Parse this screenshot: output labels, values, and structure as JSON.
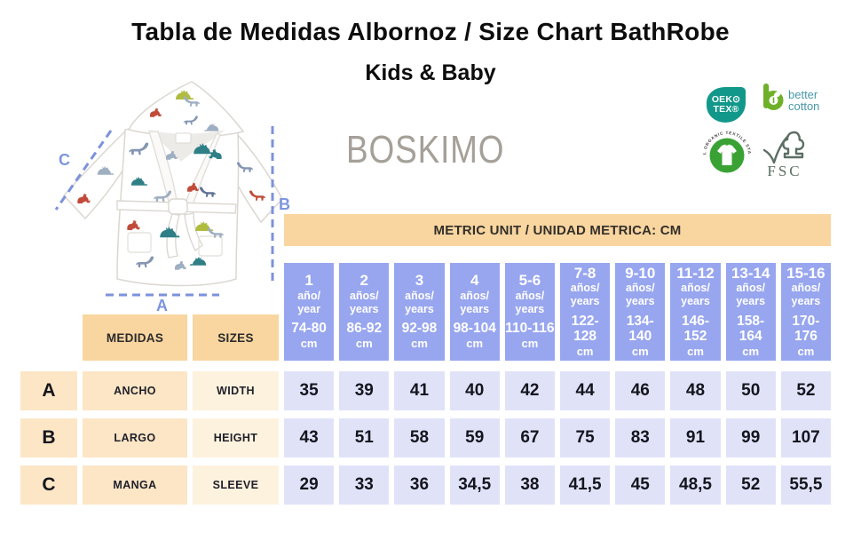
{
  "page": {
    "title": "Tabla de Medidas Albornoz / Size Chart BathRobe",
    "subtitle": "Kids & Baby",
    "brand": "BOSKIMO"
  },
  "diagram": {
    "label_a": "A",
    "label_b": "B",
    "label_c": "C"
  },
  "badges": {
    "oeko": {
      "line1": "OEK⊙",
      "line2": "TEX®"
    },
    "better_cotton": {
      "line1": "better",
      "line2": "cotton"
    },
    "gots": {
      "ring_top": "GLOBAL ORGANIC TEXTILE STANDARD",
      "ring_bottom": "GOTS"
    },
    "fsc": {
      "label": "FSC"
    }
  },
  "table": {
    "banner": "METRIC UNIT / UNIDAD METRICA: CM",
    "col_medidas": "MEDIDAS",
    "col_sizes": "SIZES",
    "size_columns": [
      {
        "age": "1",
        "es": "año/",
        "en": "year",
        "range": "74-80",
        "unit": "cm"
      },
      {
        "age": "2",
        "es": "años/",
        "en": "years",
        "range": "86-92",
        "unit": "cm"
      },
      {
        "age": "3",
        "es": "años/",
        "en": "years",
        "range": "92-98",
        "unit": "cm"
      },
      {
        "age": "4",
        "es": "años/",
        "en": "years",
        "range": "98-104",
        "unit": "cm"
      },
      {
        "age": "5-6",
        "es": "años/",
        "en": "years",
        "range": "110-116",
        "unit": "cm"
      },
      {
        "age": "7-8",
        "es": "años/",
        "en": "years",
        "range": "122-128",
        "unit": "cm"
      },
      {
        "age": "9-10",
        "es": "años/",
        "en": "years",
        "range": "134-140",
        "unit": "cm"
      },
      {
        "age": "11-12",
        "es": "años/",
        "en": "years",
        "range": "146-152",
        "unit": "cm"
      },
      {
        "age": "13-14",
        "es": "años/",
        "en": "years",
        "range": "158-164",
        "unit": "cm"
      },
      {
        "age": "15-16",
        "es": "años/",
        "en": "years",
        "range": "170-176",
        "unit": "cm"
      }
    ],
    "rows": [
      {
        "letter": "A",
        "es": "ANCHO",
        "en": "WIDTH",
        "values": [
          "35",
          "39",
          "41",
          "40",
          "42",
          "44",
          "46",
          "48",
          "50",
          "52"
        ]
      },
      {
        "letter": "B",
        "es": "LARGO",
        "en": "HEIGHT",
        "values": [
          "43",
          "51",
          "58",
          "59",
          "67",
          "75",
          "83",
          "91",
          "99",
          "107"
        ]
      },
      {
        "letter": "C",
        "es": "MANGA",
        "en": "SLEEVE",
        "values": [
          "29",
          "33",
          "36",
          "34,5",
          "38",
          "41,5",
          "45",
          "48,5",
          "52",
          "55,5"
        ]
      }
    ]
  },
  "chart_data": {
    "type": "table",
    "title": "Tabla de Medidas Albornoz / Size Chart BathRobe — Kids & Baby",
    "unit": "cm",
    "columns": [
      "1 año/year 74-80 cm",
      "2 años/years 86-92 cm",
      "3 años/years 92-98 cm",
      "4 años/years 98-104 cm",
      "5-6 años/years 110-116 cm",
      "7-8 años/years 122-128 cm",
      "9-10 años/years 134-140 cm",
      "11-12 años/years 146-152 cm",
      "13-14 años/years 158-164 cm",
      "15-16 años/years 170-176 cm"
    ],
    "rows": [
      {
        "label": "A ANCHO / WIDTH",
        "values": [
          35,
          39,
          41,
          40,
          42,
          44,
          46,
          48,
          50,
          52
        ]
      },
      {
        "label": "B LARGO / HEIGHT",
        "values": [
          43,
          51,
          58,
          59,
          67,
          75,
          83,
          91,
          99,
          107
        ]
      },
      {
        "label": "C MANGA / SLEEVE",
        "values": [
          29,
          33,
          36,
          34.5,
          38,
          41.5,
          45,
          48.5,
          52,
          55.5
        ]
      }
    ]
  },
  "colors": {
    "header_blue": "#98a6ef",
    "cell_lavender": "#e0e3f8",
    "banner_peach": "#f9d5a0",
    "label_peach": "#fce6c6",
    "label_cream": "#fdf2de",
    "accent_line": "#7c92dc",
    "oeko_teal": "#12988a",
    "bc_green": "#6fb02a",
    "gots_green": "#3aa235",
    "fsc_gray": "#5c6f63"
  }
}
